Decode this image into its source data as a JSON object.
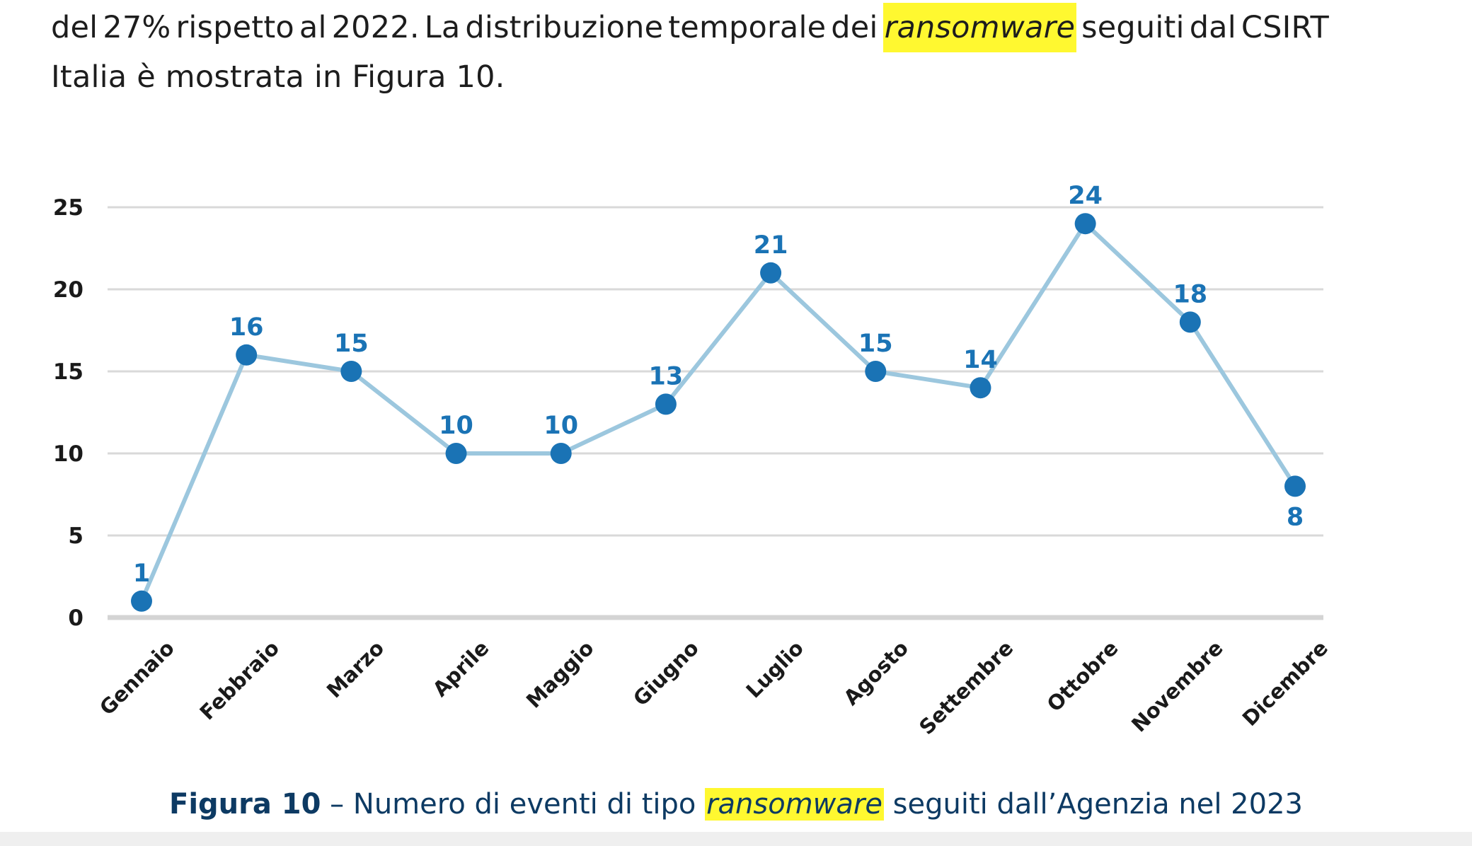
{
  "text": {
    "line1_words": [
      "del",
      "27%",
      "rispetto",
      "al",
      "2022.",
      "La",
      "distribuzione",
      "temporale",
      "dei"
    ],
    "highlight": "ransomware",
    "line1_tail_words": [
      "seguiti",
      "dal",
      "CSIRT"
    ],
    "line2": "Italia è mostrata in Figura 10."
  },
  "caption": {
    "figure": "Figura 10",
    "dash": " – ",
    "before": "Numero di eventi di tipo ",
    "highlight": "ransomware",
    "after": " seguiti dall’Agenzia nel 2023"
  },
  "colors": {
    "line": "#9cc7de",
    "marker": "#1a73b5",
    "label": "#1a73b5",
    "grid": "#d9d9d9",
    "baseline": "#d4d4d4",
    "highlight": "#fff830"
  },
  "chart_data": {
    "type": "line",
    "categories": [
      "Gennaio",
      "Febbraio",
      "Marzo",
      "Aprile",
      "Maggio",
      "Giugno",
      "Luglio",
      "Agosto",
      "Settembre",
      "Ottobre",
      "Novembre",
      "Dicembre"
    ],
    "values": [
      1,
      16,
      15,
      10,
      10,
      13,
      21,
      15,
      14,
      24,
      18,
      8
    ],
    "data_labels": [
      "1",
      "16",
      "15",
      "10",
      "10",
      "13",
      "21",
      "15",
      "14",
      "24",
      "18",
      "8"
    ],
    "yticks": [
      0,
      5,
      10,
      15,
      20,
      25
    ],
    "ylim": [
      0,
      25
    ],
    "grid": true,
    "legend": "none"
  }
}
